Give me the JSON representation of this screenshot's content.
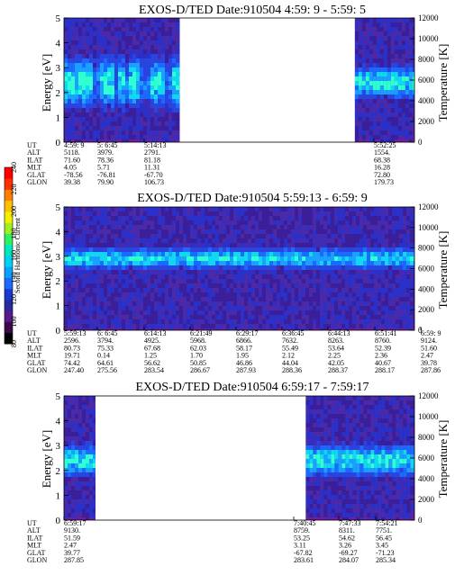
{
  "colorbar": {
    "label": "Second Harmonic Current",
    "ticks": [
      "80",
      "100",
      "120",
      "140",
      "160",
      "180",
      "200",
      "220",
      "240"
    ],
    "colors": [
      "#000000",
      "#3a0a4a",
      "#5a1a8a",
      "#2a2aa0",
      "#1a3acf",
      "#1a6aff",
      "#0aa0ff",
      "#00d0f0",
      "#00e8c0",
      "#30f060",
      "#a0f020",
      "#f0f000",
      "#ffc000",
      "#ff8000",
      "#ff3000",
      "#ff0000"
    ]
  },
  "row_labels": [
    "UT",
    "ALT",
    "ILAT",
    "MLT",
    "GLAT",
    "GLON"
  ],
  "chart_data": [
    {
      "type": "heatmap",
      "title": "EXOS-D/TED   Date:910504  4:59: 9 - 5:59: 5",
      "ylabel": "Energy [eV]",
      "y2label": "Temperature [K]",
      "ylim": [
        0,
        5
      ],
      "y2lim": [
        0,
        12000
      ],
      "yticks": [
        "0",
        "1",
        "2",
        "3",
        "4",
        "5"
      ],
      "y2ticks": [
        "0",
        "2000",
        "4000",
        "6000",
        "8000",
        "10000",
        "12000"
      ],
      "data_segments": [
        [
          0,
          0.33
        ],
        [
          0.83,
          1
        ]
      ],
      "orbit": [
        [
          "4:59: 9",
          "5118.",
          "71.60",
          "4.05",
          "-78.56",
          "39.38"
        ],
        [
          "5: 6:45",
          "3979.",
          "78.36",
          "5.71",
          "-76.81",
          "79.90"
        ],
        [
          "5:14:13",
          "2791.",
          "81.18",
          "11.31",
          "-67.70",
          "106.73"
        ],
        [
          "5:52:25",
          "1554.",
          "68.38",
          "16.28",
          "72.80",
          "179.73"
        ]
      ]
    },
    {
      "type": "heatmap",
      "title": "EXOS-D/TED   Date:910504  5:59:13 - 6:59: 9",
      "ylabel": "Energy [eV]",
      "y2label": "Temperature [K]",
      "ylim": [
        0,
        5
      ],
      "y2lim": [
        0,
        12000
      ],
      "yticks": [
        "0",
        "1",
        "2",
        "3",
        "4",
        "5"
      ],
      "y2ticks": [
        "0",
        "2000",
        "4000",
        "6000",
        "8000",
        "10000",
        "12000"
      ],
      "data_segments": [
        [
          0,
          1
        ]
      ],
      "orbit": [
        [
          "5:59:13",
          "2596.",
          "80.73",
          "19.71",
          "74.42",
          "247.40"
        ],
        [
          "6: 6:45",
          "3794.",
          "75.33",
          "0.14",
          "64.61",
          "275.56"
        ],
        [
          "6:14:13",
          "4925.",
          "67.68",
          "1.25",
          "56.62",
          "283.54"
        ],
        [
          "6:21:49",
          "5968.",
          "62.03",
          "1.70",
          "50.85",
          "286.67"
        ],
        [
          "6:29:17",
          "6866.",
          "58.17",
          "1.95",
          "46.86",
          "287.93"
        ],
        [
          "6:36:45",
          "7632.",
          "55.49",
          "2.12",
          "44.04",
          "288.36"
        ],
        [
          "6:44:13",
          "8263.",
          "53.64",
          "2.25",
          "42.05",
          "288.37"
        ],
        [
          "6:51:41",
          "8760.",
          "52.39",
          "2.36",
          "40.67",
          "288.17"
        ],
        [
          "6:59: 9",
          "9124.",
          "51.60",
          "2.47",
          "39.78",
          "287.86"
        ]
      ]
    },
    {
      "type": "heatmap",
      "title": "EXOS-D/TED   Date:910504  6:59:17 - 7:59:17",
      "ylabel": "Energy [eV]",
      "y2label": "Temperature [K]",
      "ylim": [
        0,
        5
      ],
      "y2lim": [
        0,
        12000
      ],
      "yticks": [
        "0",
        "1",
        "2",
        "3",
        "4",
        "5"
      ],
      "y2ticks": [
        "0",
        "2000",
        "4000",
        "6000",
        "8000",
        "10000",
        "12000"
      ],
      "data_segments": [
        [
          0,
          0.09
        ],
        [
          0.69,
          1
        ]
      ],
      "orbit": [
        [
          "6:59:17",
          "9130.",
          "51.59",
          "2.47",
          "39.77",
          "287.85"
        ],
        [
          "7:40:45",
          "8759.",
          "53.25",
          "3.11",
          "-67.82",
          "283.61"
        ],
        [
          "7:47:33",
          "8311.",
          "54.62",
          "3.26",
          "-69.27",
          "284.07"
        ],
        [
          "7:54:21",
          "7751.",
          "56.45",
          "3.45",
          "-71.23",
          "285.34"
        ]
      ]
    }
  ]
}
